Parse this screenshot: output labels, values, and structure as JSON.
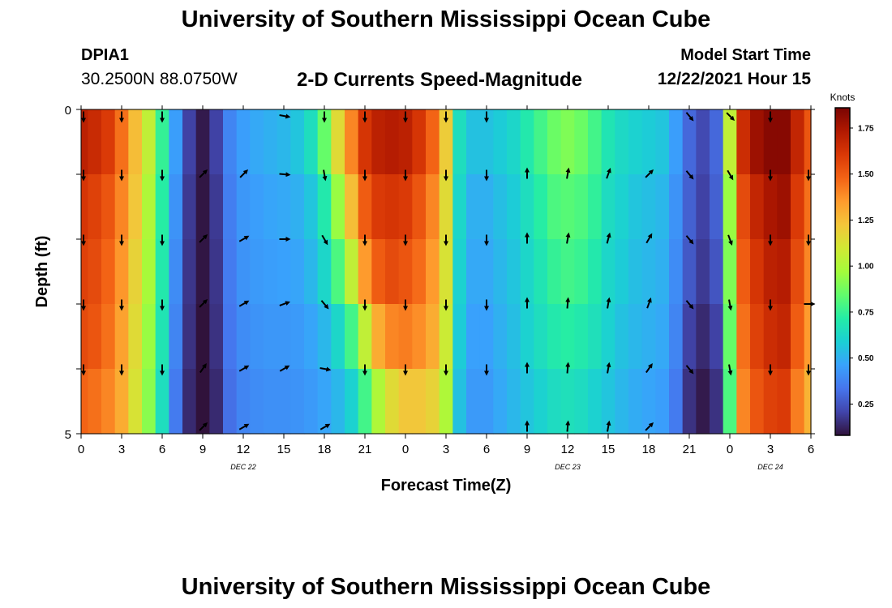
{
  "page": {
    "title": "University of Southern Mississippi Ocean Cube",
    "bottom_title": "University of Southern Mississippi Ocean Cube",
    "station_id": "DPIA1",
    "station_coords": "30.2500N  88.0750W",
    "subtitle": "2-D Currents Speed-Magnitude",
    "model_start_label": "Model Start Time",
    "model_start_value": "12/22/2021 Hour 15"
  },
  "colors": {
    "stops": [
      "#30123b",
      "#4145ab",
      "#4675ed",
      "#39a2fc",
      "#1bcfd4",
      "#24eca6",
      "#61fc6c",
      "#a4fc3b",
      "#d1e834",
      "#f3c63a",
      "#fe9b2d",
      "#f36315",
      "#d93806",
      "#b11901",
      "#7a0402"
    ],
    "arrow": "#000000",
    "axis": "#000000"
  },
  "chart_data": {
    "type": "heatmap",
    "xlabel": "Forecast Time(Z)",
    "ylabel": "Depth (ft)",
    "x_tick_labels": [
      "0",
      "3",
      "6",
      "9",
      "12",
      "15",
      "18",
      "21",
      "0",
      "3",
      "6",
      "9",
      "12",
      "15",
      "18",
      "21",
      "0",
      "3",
      "6"
    ],
    "x_range_hours": [
      0,
      54
    ],
    "date_labels": [
      {
        "text": "DEC 22",
        "hour": 12
      },
      {
        "text": "DEC 23",
        "hour": 36
      },
      {
        "text": "DEC 24",
        "hour": 51
      }
    ],
    "y_tick_labels": [
      "0",
      "5"
    ],
    "y_range": [
      0,
      5
    ],
    "depth_rows": 5,
    "colorbar": {
      "label": "Knots",
      "range": [
        0.08,
        1.86
      ],
      "ticks": [
        "1.75",
        "1.50",
        "1.25",
        "1.00",
        "0.75",
        "0.50",
        "0.25"
      ],
      "tick_values": [
        1.75,
        1.5,
        1.25,
        1.0,
        0.75,
        0.5,
        0.25
      ]
    },
    "speed_profile": {
      "hours": [
        0,
        1,
        2,
        3,
        4,
        5,
        6,
        7,
        8,
        9,
        10,
        11,
        12,
        13,
        14,
        15,
        16,
        17,
        18,
        19,
        20,
        21,
        22,
        23,
        24,
        25,
        26,
        27,
        28,
        29,
        30,
        31,
        32,
        33,
        34,
        35,
        36,
        37,
        38,
        39,
        40,
        41,
        42,
        43,
        44,
        45,
        46,
        47,
        48,
        49,
        50,
        51,
        52,
        53,
        54
      ],
      "rows": [
        [
          1.7,
          1.66,
          1.6,
          1.45,
          1.25,
          1.05,
          0.75,
          0.45,
          0.2,
          0.1,
          0.2,
          0.38,
          0.45,
          0.48,
          0.5,
          0.52,
          0.56,
          0.65,
          0.85,
          1.15,
          1.4,
          1.62,
          1.7,
          1.72,
          1.7,
          1.62,
          1.48,
          1.2,
          0.65,
          0.55,
          0.55,
          0.58,
          0.62,
          0.7,
          0.78,
          0.86,
          0.9,
          0.86,
          0.78,
          0.68,
          0.63,
          0.6,
          0.58,
          0.56,
          0.45,
          0.3,
          0.22,
          0.3,
          1.05,
          1.65,
          1.78,
          1.83,
          1.83,
          1.68,
          1.52
        ],
        [
          1.62,
          1.58,
          1.52,
          1.4,
          1.22,
          1.0,
          0.72,
          0.42,
          0.18,
          0.09,
          0.18,
          0.36,
          0.43,
          0.45,
          0.47,
          0.48,
          0.5,
          0.56,
          0.7,
          0.95,
          1.25,
          1.5,
          1.6,
          1.62,
          1.6,
          1.52,
          1.4,
          1.15,
          0.62,
          0.5,
          0.5,
          0.54,
          0.58,
          0.65,
          0.72,
          0.8,
          0.82,
          0.8,
          0.74,
          0.64,
          0.6,
          0.56,
          0.54,
          0.52,
          0.42,
          0.28,
          0.2,
          0.28,
          0.95,
          1.55,
          1.68,
          1.75,
          1.78,
          1.6,
          1.45
        ],
        [
          1.58,
          1.55,
          1.48,
          1.36,
          1.18,
          0.98,
          0.7,
          0.4,
          0.17,
          0.09,
          0.17,
          0.35,
          0.42,
          0.44,
          0.45,
          0.46,
          0.47,
          0.52,
          0.62,
          0.8,
          1.05,
          1.35,
          1.5,
          1.55,
          1.52,
          1.46,
          1.35,
          1.12,
          0.6,
          0.48,
          0.48,
          0.52,
          0.56,
          0.62,
          0.68,
          0.75,
          0.78,
          0.76,
          0.7,
          0.62,
          0.58,
          0.54,
          0.52,
          0.5,
          0.4,
          0.26,
          0.18,
          0.25,
          0.9,
          1.5,
          1.62,
          1.7,
          1.72,
          1.55,
          1.4
        ],
        [
          1.55,
          1.52,
          1.45,
          1.33,
          1.15,
          0.95,
          0.68,
          0.38,
          0.16,
          0.08,
          0.16,
          0.34,
          0.4,
          0.42,
          0.43,
          0.43,
          0.44,
          0.47,
          0.52,
          0.62,
          0.78,
          1.05,
          1.3,
          1.4,
          1.42,
          1.38,
          1.3,
          1.08,
          0.58,
          0.46,
          0.46,
          0.5,
          0.54,
          0.6,
          0.65,
          0.7,
          0.72,
          0.7,
          0.66,
          0.6,
          0.55,
          0.52,
          0.5,
          0.48,
          0.38,
          0.2,
          0.14,
          0.2,
          0.85,
          1.45,
          1.58,
          1.65,
          1.68,
          1.5,
          1.35
        ],
        [
          1.48,
          1.45,
          1.4,
          1.3,
          1.12,
          0.92,
          0.65,
          0.35,
          0.14,
          0.08,
          0.14,
          0.32,
          0.38,
          0.4,
          0.41,
          0.41,
          0.42,
          0.44,
          0.47,
          0.52,
          0.6,
          0.78,
          1.0,
          1.15,
          1.22,
          1.22,
          1.18,
          1.0,
          0.55,
          0.44,
          0.44,
          0.48,
          0.52,
          0.56,
          0.6,
          0.64,
          0.66,
          0.64,
          0.6,
          0.56,
          0.52,
          0.49,
          0.47,
          0.45,
          0.35,
          0.16,
          0.1,
          0.16,
          0.8,
          1.4,
          1.52,
          1.58,
          1.6,
          1.42,
          1.28
        ]
      ]
    },
    "arrows": {
      "hours": [
        0,
        3,
        6,
        9,
        12,
        15,
        18,
        21,
        24,
        27,
        30,
        33,
        36,
        39,
        42,
        45,
        48,
        51,
        54
      ],
      "rows": [
        {
          "depth": 0,
          "angles": [
            180,
            180,
            180,
            null,
            null,
            100,
            180,
            180,
            180,
            180,
            180,
            null,
            null,
            null,
            null,
            140,
            135,
            180,
            null
          ]
        },
        {
          "depth": 1,
          "angles": [
            180,
            180,
            180,
            45,
            45,
            95,
            170,
            180,
            180,
            180,
            180,
            0,
            10,
            20,
            45,
            140,
            150,
            180,
            180
          ]
        },
        {
          "depth": 2,
          "angles": [
            180,
            180,
            180,
            45,
            60,
            90,
            150,
            180,
            180,
            180,
            180,
            0,
            10,
            15,
            30,
            140,
            160,
            180,
            180
          ]
        },
        {
          "depth": 3,
          "angles": [
            180,
            180,
            180,
            45,
            60,
            70,
            140,
            180,
            180,
            180,
            180,
            0,
            5,
            10,
            20,
            140,
            170,
            180,
            90
          ]
        },
        {
          "depth": 4,
          "angles": [
            180,
            180,
            180,
            35,
            60,
            60,
            100,
            180,
            180,
            180,
            180,
            0,
            5,
            10,
            35,
            140,
            170,
            180,
            180
          ]
        },
        {
          "depth": 5,
          "angles": [
            null,
            null,
            null,
            45,
            60,
            null,
            60,
            null,
            null,
            null,
            null,
            0,
            5,
            10,
            45,
            null,
            null,
            null,
            null
          ]
        }
      ]
    }
  }
}
